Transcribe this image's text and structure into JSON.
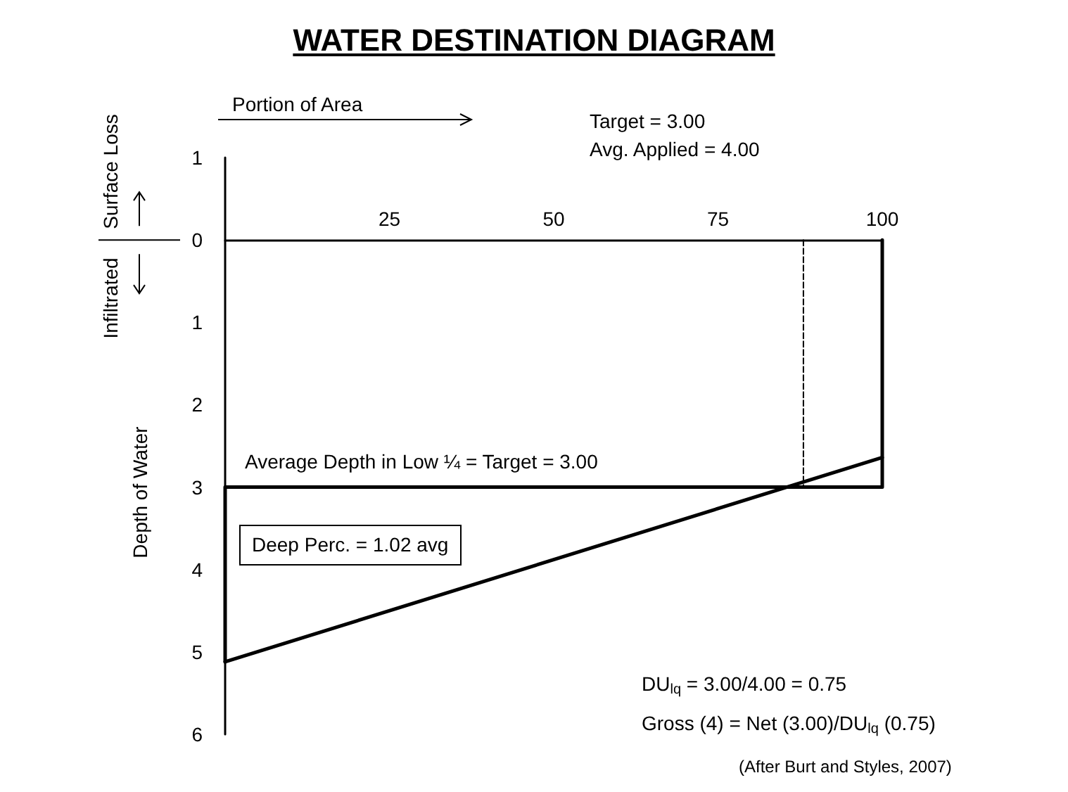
{
  "chart_data": {
    "type": "line",
    "title": "WATER DESTINATION DIAGRAM",
    "xlabel": "Portion of Area",
    "ylabel": "Depth of Water",
    "xlim": [
      0,
      100
    ],
    "xticks": [
      25,
      50,
      75,
      100
    ],
    "ylim": [
      6,
      -1
    ],
    "yticks": [
      {
        "value": -1,
        "label": "1"
      },
      0,
      1,
      2,
      3,
      4,
      5,
      6
    ],
    "marker": "none",
    "series": [
      {
        "color": "#000000",
        "x": [
          0,
          100
        ],
        "values": [
          5.12,
          2.64
        ],
        "line_style": "solid"
      },
      {
        "color": "#000000",
        "x": [
          0,
          0,
          100,
          100
        ],
        "values": [
          5.12,
          3,
          3,
          0
        ],
        "line_style": "solid"
      },
      {
        "color": "#000000",
        "x": [
          88,
          88
        ],
        "values": [
          0,
          3
        ],
        "line_style": "dashed"
      }
    ],
    "annotations": [
      {
        "text": "Average Depth in Low ¼ = Target = 3.00",
        "x": 3,
        "y": 3
      },
      "Target = 3.00",
      "Avg. Applied = 4.00",
      "Surface Loss",
      "Infiltrated",
      "Deep Perc. = 1.02 avg",
      "DU$_{lq}$ = 3.00/4.00 = 0.75",
      "Gross (4) = Net (3.00)/DU$_{lq}$ (0.75)",
      "(After Burt and Styles, 2007)"
    ]
  }
}
